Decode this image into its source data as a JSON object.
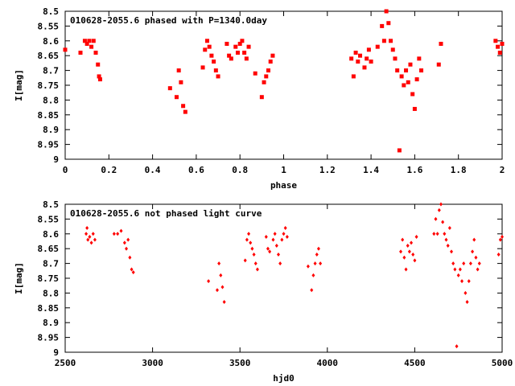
{
  "chart_data": [
    {
      "type": "scatter",
      "title": "010628-2055.6 phased with P=1340.0day",
      "xlabel": "phase",
      "ylabel": "I[mag]",
      "xlim": [
        0,
        2
      ],
      "ylim": [
        9,
        8.5
      ],
      "y_inverted": true,
      "x_ticks": [
        "0",
        "0.2",
        "0.4",
        "0.6",
        "0.8",
        "1",
        "1.2",
        "1.4",
        "1.6",
        "1.8",
        "2"
      ],
      "y_ticks": [
        "8.5",
        "8.55",
        "8.6",
        "8.65",
        "8.7",
        "8.75",
        "8.8",
        "8.85",
        "8.9",
        "8.95",
        "9"
      ],
      "marker_color": "#ff0000",
      "points": [
        [
          0.0,
          8.63
        ],
        [
          0.07,
          8.64
        ],
        [
          0.09,
          8.6
        ],
        [
          0.1,
          8.61
        ],
        [
          0.11,
          8.6
        ],
        [
          0.12,
          8.62
        ],
        [
          0.13,
          8.6
        ],
        [
          0.14,
          8.64
        ],
        [
          0.15,
          8.68
        ],
        [
          0.155,
          8.72
        ],
        [
          0.16,
          8.73
        ],
        [
          0.48,
          8.76
        ],
        [
          0.51,
          8.79
        ],
        [
          0.52,
          8.7
        ],
        [
          0.53,
          8.74
        ],
        [
          0.54,
          8.82
        ],
        [
          0.55,
          8.84
        ],
        [
          0.63,
          8.69
        ],
        [
          0.64,
          8.63
        ],
        [
          0.65,
          8.6
        ],
        [
          0.66,
          8.62
        ],
        [
          0.67,
          8.65
        ],
        [
          0.68,
          8.67
        ],
        [
          0.69,
          8.7
        ],
        [
          0.7,
          8.72
        ],
        [
          0.74,
          8.61
        ],
        [
          0.75,
          8.65
        ],
        [
          0.76,
          8.66
        ],
        [
          0.78,
          8.62
        ],
        [
          0.79,
          8.64
        ],
        [
          0.8,
          8.61
        ],
        [
          0.81,
          8.6
        ],
        [
          0.82,
          8.64
        ],
        [
          0.83,
          8.66
        ],
        [
          0.84,
          8.62
        ],
        [
          0.87,
          8.71
        ],
        [
          0.9,
          8.79
        ],
        [
          0.91,
          8.74
        ],
        [
          0.92,
          8.72
        ],
        [
          0.93,
          8.7
        ],
        [
          0.94,
          8.67
        ],
        [
          0.95,
          8.65
        ],
        [
          1.31,
          8.66
        ],
        [
          1.32,
          8.72
        ],
        [
          1.33,
          8.64
        ],
        [
          1.34,
          8.67
        ],
        [
          1.35,
          8.65
        ],
        [
          1.37,
          8.69
        ],
        [
          1.38,
          8.66
        ],
        [
          1.39,
          8.63
        ],
        [
          1.4,
          8.67
        ],
        [
          1.43,
          8.62
        ],
        [
          1.45,
          8.55
        ],
        [
          1.46,
          8.6
        ],
        [
          1.47,
          8.5
        ],
        [
          1.48,
          8.54
        ],
        [
          1.49,
          8.6
        ],
        [
          1.5,
          8.63
        ],
        [
          1.51,
          8.66
        ],
        [
          1.52,
          8.7
        ],
        [
          1.53,
          8.97
        ],
        [
          1.54,
          8.72
        ],
        [
          1.55,
          8.75
        ],
        [
          1.56,
          8.7
        ],
        [
          1.57,
          8.74
        ],
        [
          1.58,
          8.68
        ],
        [
          1.59,
          8.78
        ],
        [
          1.6,
          8.83
        ],
        [
          1.61,
          8.73
        ],
        [
          1.62,
          8.66
        ],
        [
          1.63,
          8.7
        ],
        [
          1.71,
          8.68
        ],
        [
          1.72,
          8.61
        ],
        [
          1.97,
          8.6
        ],
        [
          1.98,
          8.62
        ],
        [
          1.99,
          8.64
        ],
        [
          2.0,
          8.61
        ]
      ]
    },
    {
      "type": "scatter",
      "title": "010628-2055.6 not phased light curve",
      "xlabel": "hjd0",
      "ylabel": "I[mag]",
      "xlim": [
        2500,
        5000
      ],
      "ylim": [
        9,
        8.5
      ],
      "y_inverted": true,
      "x_ticks": [
        "2500",
        "3000",
        "3500",
        "4000",
        "4500",
        "5000"
      ],
      "y_ticks": [
        "8.5",
        "8.55",
        "8.6",
        "8.65",
        "8.7",
        "8.75",
        "8.8",
        "8.85",
        "8.9",
        "8.95",
        "9"
      ],
      "marker_color": "#ff0000",
      "points": [
        [
          2620,
          8.6
        ],
        [
          2625,
          8.58
        ],
        [
          2630,
          8.62
        ],
        [
          2640,
          8.61
        ],
        [
          2650,
          8.63
        ],
        [
          2660,
          8.6
        ],
        [
          2670,
          8.62
        ],
        [
          2780,
          8.6
        ],
        [
          2800,
          8.6
        ],
        [
          2820,
          8.59
        ],
        [
          2840,
          8.63
        ],
        [
          2850,
          8.65
        ],
        [
          2860,
          8.62
        ],
        [
          2870,
          8.68
        ],
        [
          2880,
          8.72
        ],
        [
          2890,
          8.73
        ],
        [
          3320,
          8.76
        ],
        [
          3370,
          8.79
        ],
        [
          3380,
          8.7
        ],
        [
          3390,
          8.74
        ],
        [
          3400,
          8.78
        ],
        [
          3410,
          8.83
        ],
        [
          3530,
          8.69
        ],
        [
          3540,
          8.62
        ],
        [
          3550,
          8.6
        ],
        [
          3560,
          8.63
        ],
        [
          3570,
          8.65
        ],
        [
          3580,
          8.67
        ],
        [
          3590,
          8.7
        ],
        [
          3600,
          8.72
        ],
        [
          3650,
          8.61
        ],
        [
          3660,
          8.65
        ],
        [
          3670,
          8.66
        ],
        [
          3690,
          8.62
        ],
        [
          3700,
          8.6
        ],
        [
          3710,
          8.64
        ],
        [
          3720,
          8.67
        ],
        [
          3730,
          8.7
        ],
        [
          3740,
          8.62
        ],
        [
          3750,
          8.6
        ],
        [
          3760,
          8.58
        ],
        [
          3770,
          8.61
        ],
        [
          3890,
          8.71
        ],
        [
          3910,
          8.79
        ],
        [
          3920,
          8.74
        ],
        [
          3930,
          8.7
        ],
        [
          3940,
          8.67
        ],
        [
          3950,
          8.65
        ],
        [
          3960,
          8.7
        ],
        [
          4420,
          8.66
        ],
        [
          4430,
          8.62
        ],
        [
          4440,
          8.68
        ],
        [
          4450,
          8.72
        ],
        [
          4460,
          8.64
        ],
        [
          4470,
          8.66
        ],
        [
          4480,
          8.63
        ],
        [
          4490,
          8.67
        ],
        [
          4500,
          8.69
        ],
        [
          4510,
          8.61
        ],
        [
          4610,
          8.6
        ],
        [
          4620,
          8.55
        ],
        [
          4630,
          8.6
        ],
        [
          4640,
          8.52
        ],
        [
          4650,
          8.5
        ],
        [
          4660,
          8.56
        ],
        [
          4670,
          8.6
        ],
        [
          4680,
          8.62
        ],
        [
          4690,
          8.64
        ],
        [
          4700,
          8.58
        ],
        [
          4710,
          8.66
        ],
        [
          4720,
          8.7
        ],
        [
          4730,
          8.72
        ],
        [
          4740,
          8.98
        ],
        [
          4750,
          8.74
        ],
        [
          4760,
          8.72
        ],
        [
          4770,
          8.76
        ],
        [
          4780,
          8.7
        ],
        [
          4790,
          8.8
        ],
        [
          4800,
          8.83
        ],
        [
          4810,
          8.76
        ],
        [
          4820,
          8.7
        ],
        [
          4830,
          8.66
        ],
        [
          4840,
          8.62
        ],
        [
          4850,
          8.68
        ],
        [
          4860,
          8.72
        ],
        [
          4870,
          8.7
        ],
        [
          4980,
          8.67
        ],
        [
          4990,
          8.62
        ],
        [
          5000,
          8.61
        ]
      ]
    }
  ]
}
